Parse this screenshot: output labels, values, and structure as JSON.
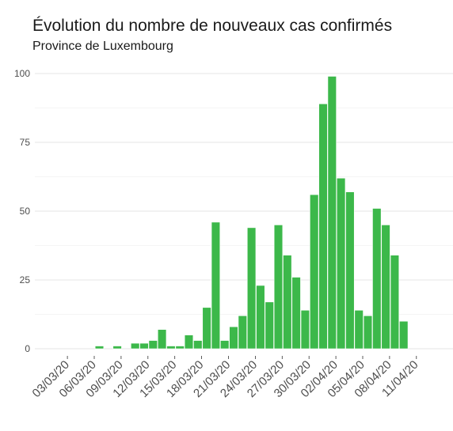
{
  "chart_data": {
    "type": "bar",
    "title": "Évolution du nombre de nouveaux cas confirmés",
    "subtitle": "Province de Luxembourg",
    "xlabel": "",
    "ylabel": "",
    "x": [
      "01/03/20",
      "02/03/20",
      "03/03/20",
      "04/03/20",
      "05/03/20",
      "06/03/20",
      "07/03/20",
      "08/03/20",
      "09/03/20",
      "10/03/20",
      "11/03/20",
      "12/03/20",
      "13/03/20",
      "14/03/20",
      "15/03/20",
      "16/03/20",
      "17/03/20",
      "18/03/20",
      "19/03/20",
      "20/03/20",
      "21/03/20",
      "22/03/20",
      "23/03/20",
      "24/03/20",
      "25/03/20",
      "26/03/20",
      "27/03/20",
      "28/03/20",
      "29/03/20",
      "30/03/20",
      "31/03/20",
      "01/04/20",
      "02/04/20",
      "03/04/20",
      "04/04/20",
      "05/04/20",
      "06/04/20",
      "07/04/20",
      "08/04/20",
      "09/04/20",
      "10/04/20",
      "11/04/20",
      "12/04/20"
    ],
    "values": [
      0,
      0,
      0,
      0,
      0,
      1,
      0,
      1,
      0,
      2,
      2,
      3,
      7,
      1,
      1,
      5,
      3,
      15,
      46,
      3,
      8,
      12,
      44,
      23,
      17,
      45,
      34,
      26,
      14,
      56,
      89,
      99,
      62,
      57,
      14,
      12,
      51,
      45,
      34,
      10,
      0,
      0,
      0
    ],
    "ylim": [
      0,
      100
    ],
    "yticks": [
      0,
      25,
      50,
      75,
      100
    ],
    "xtick_labels": [
      "03/03/20",
      "06/03/20",
      "09/03/20",
      "12/03/20",
      "15/03/20",
      "18/03/20",
      "21/03/20",
      "24/03/20",
      "27/03/20",
      "30/03/20",
      "02/04/20",
      "05/04/20",
      "08/04/20",
      "11/04/20"
    ],
    "bar_color": "#3cb84a",
    "grid": true,
    "legend": "none"
  }
}
